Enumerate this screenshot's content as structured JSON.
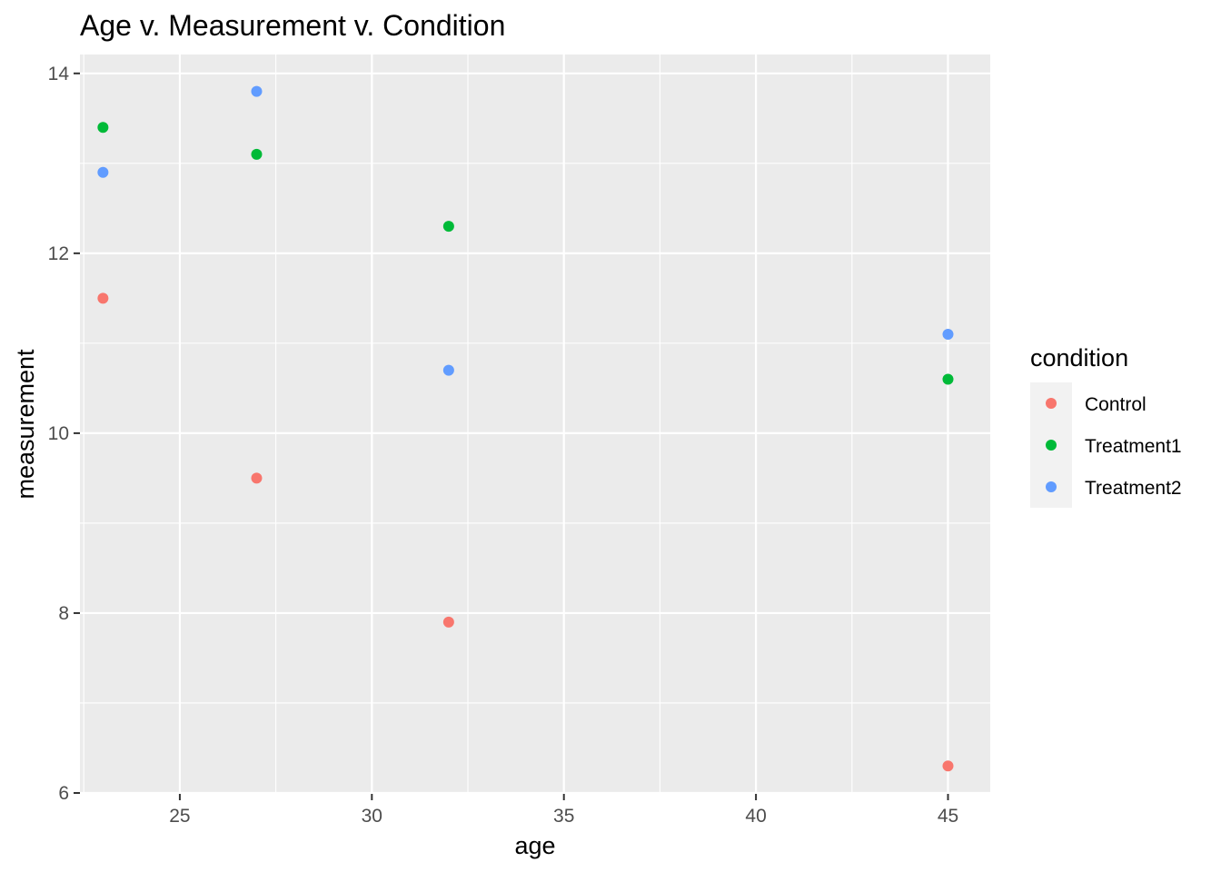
{
  "chart_data": {
    "type": "scatter",
    "title": "Age v. Measurement v. Condition",
    "xlabel": "age",
    "ylabel": "measurement",
    "xlim": [
      22.4,
      46.1
    ],
    "ylim": [
      5.99,
      14.21
    ],
    "x_ticks": [
      25,
      30,
      35,
      40,
      45
    ],
    "y_ticks": [
      6,
      8,
      10,
      12,
      14
    ],
    "grid": true,
    "legend": {
      "title": "condition",
      "placement": "right"
    },
    "series": [
      {
        "name": "Control",
        "color": "#F8766D",
        "points": [
          {
            "x": 23,
            "y": 11.5
          },
          {
            "x": 27,
            "y": 9.5
          },
          {
            "x": 32,
            "y": 7.9
          },
          {
            "x": 45,
            "y": 6.3
          }
        ]
      },
      {
        "name": "Treatment1",
        "color": "#00BA38",
        "points": [
          {
            "x": 23,
            "y": 13.4
          },
          {
            "x": 27,
            "y": 13.1
          },
          {
            "x": 32,
            "y": 12.3
          },
          {
            "x": 45,
            "y": 10.6
          }
        ]
      },
      {
        "name": "Treatment2",
        "color": "#619CFF",
        "points": [
          {
            "x": 23,
            "y": 12.9
          },
          {
            "x": 27,
            "y": 13.8
          },
          {
            "x": 32,
            "y": 10.7
          },
          {
            "x": 45,
            "y": 11.1
          }
        ]
      }
    ]
  }
}
